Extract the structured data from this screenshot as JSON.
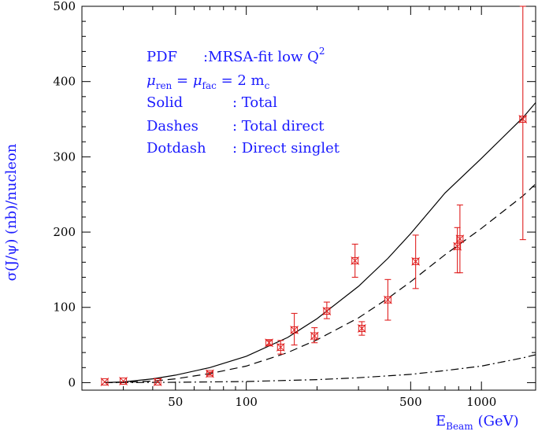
{
  "chart_data": {
    "type": "line",
    "xlabel": {
      "main": "E",
      "sub": "Beam",
      "unit": "(GeV)"
    },
    "ylabel": "σ(J/ψ) (nb)/nucleon",
    "x_scale": "log",
    "xlim": [
      20,
      1700
    ],
    "ylim": [
      -10,
      500
    ],
    "x_ticks": [
      50,
      100,
      500,
      1000
    ],
    "x_tick_labels": [
      "50",
      "100",
      "500",
      "1000"
    ],
    "y_ticks": [
      0,
      100,
      200,
      300,
      400,
      500
    ],
    "y_tick_labels": [
      "0",
      "100",
      "200",
      "300",
      "400",
      "500"
    ],
    "annotations": {
      "line1_label": "PDF",
      "line1_value": ":MRSA-fit low Q",
      "line1_sup": "2",
      "line2_mu1": "μ",
      "line2_sub1": "ren",
      "line2_eq1": " = ",
      "line2_mu2": "μ",
      "line2_sub2": "fac",
      "line2_eq2": " = 2 m",
      "line2_sub3": "c",
      "line3_label": "Solid",
      "line3_value": ": Total",
      "line4_label": "Dashes",
      "line4_value": ": Total direct",
      "line5_label": "Dotdash",
      "line5_value": ": Direct singlet"
    },
    "series": [
      {
        "style": "solid",
        "color": "#000000",
        "x": [
          25,
          30,
          40,
          50,
          70,
          100,
          150,
          200,
          300,
          400,
          500,
          700,
          1000,
          1500,
          1700
        ],
        "y": [
          0,
          1,
          5,
          10,
          20,
          35,
          60,
          85,
          128,
          165,
          198,
          252,
          298,
          352,
          372
        ]
      },
      {
        "style": "dashed",
        "color": "#000000",
        "x": [
          25,
          30,
          40,
          50,
          70,
          100,
          150,
          200,
          300,
          400,
          500,
          700,
          1000,
          1500,
          1700
        ],
        "y": [
          0,
          0.5,
          2,
          5,
          12,
          22,
          40,
          57,
          86,
          112,
          134,
          170,
          205,
          248,
          264
        ]
      },
      {
        "style": "dotdash",
        "color": "#000000",
        "x": [
          25,
          50,
          100,
          200,
          300,
          400,
          500,
          700,
          1000,
          1500,
          1700
        ],
        "y": [
          0,
          0.5,
          1.5,
          4,
          6.5,
          9,
          11,
          16,
          22,
          33,
          37
        ]
      }
    ],
    "data_points": {
      "color": "#e02020",
      "x": [
        25,
        30,
        42,
        70,
        125,
        140,
        160,
        195,
        220,
        290,
        310,
        400,
        525,
        790,
        810,
        1500
      ],
      "y": [
        1,
        2,
        1,
        12,
        53,
        47,
        70,
        62,
        95,
        162,
        72,
        110,
        161,
        181,
        191,
        350
      ],
      "err_low": [
        0,
        0,
        0,
        2,
        3,
        9,
        20,
        9,
        10,
        22,
        9,
        27,
        36,
        35,
        45,
        160
      ],
      "err_high": [
        0,
        0,
        0,
        2,
        3,
        9,
        22,
        11,
        12,
        22,
        9,
        27,
        35,
        25,
        45,
        150
      ]
    }
  }
}
